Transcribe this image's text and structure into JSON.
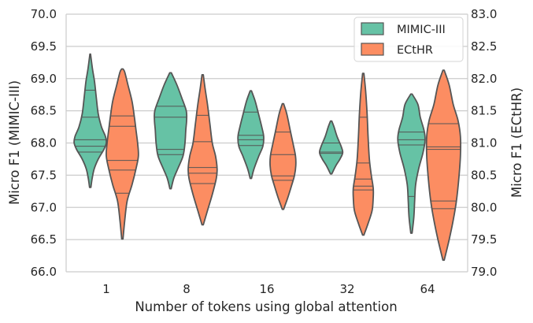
{
  "chart_data": {
    "type": "violin",
    "xlabel": "Number of tokens using global attention",
    "categories": [
      "1",
      "8",
      "16",
      "32",
      "64"
    ],
    "y_left": {
      "label": "Micro F1 (MIMIC-III)",
      "lim": [
        66.0,
        70.0
      ],
      "ticks": [
        "66.0",
        "66.5",
        "67.0",
        "67.5",
        "68.0",
        "68.5",
        "69.0",
        "69.5",
        "70.0"
      ]
    },
    "y_right": {
      "label": "Micro F1 (ECtHR)",
      "lim": [
        79.0,
        83.0
      ],
      "ticks": [
        "79.0",
        "79.5",
        "80.0",
        "80.5",
        "81.0",
        "81.5",
        "82.0",
        "82.5",
        "83.0"
      ]
    },
    "grid": true,
    "legend_position": "top-right",
    "legend": [
      {
        "name": "MIMIC-III",
        "color": "#66c2a5"
      },
      {
        "name": "ECtHR",
        "color": "#fc8d62"
      }
    ],
    "series": [
      {
        "name": "MIMIC-III",
        "axis": "left",
        "color": "#66c2a5",
        "violins": [
          {
            "category": "1",
            "profile": [
              [
                67.31,
                0.04
              ],
              [
                67.45,
                0.12
              ],
              [
                67.6,
                0.25
              ],
              [
                67.75,
                0.5
              ],
              [
                67.9,
                0.85
              ],
              [
                68.0,
                1.0
              ],
              [
                68.1,
                0.95
              ],
              [
                68.25,
                0.7
              ],
              [
                68.45,
                0.5
              ],
              [
                68.7,
                0.38
              ],
              [
                68.95,
                0.27
              ],
              [
                69.15,
                0.14
              ],
              [
                69.38,
                0.02
              ]
            ],
            "lines": [
              67.86,
              67.95,
              68.05,
              68.4,
              68.82
            ]
          },
          {
            "category": "8",
            "profile": [
              [
                67.29,
                0.04
              ],
              [
                67.45,
                0.2
              ],
              [
                67.6,
                0.45
              ],
              [
                67.8,
                0.78
              ],
              [
                68.0,
                0.9
              ],
              [
                68.2,
                0.95
              ],
              [
                68.35,
                1.0
              ],
              [
                68.5,
                0.98
              ],
              [
                68.7,
                0.7
              ],
              [
                68.9,
                0.4
              ],
              [
                69.09,
                0.05
              ]
            ],
            "lines": [
              67.82,
              67.9,
              68.4,
              68.57
            ]
          },
          {
            "category": "16",
            "profile": [
              [
                67.45,
                0.04
              ],
              [
                67.6,
                0.2
              ],
              [
                67.8,
                0.5
              ],
              [
                67.95,
                0.75
              ],
              [
                68.1,
                0.8
              ],
              [
                68.25,
                0.68
              ],
              [
                68.45,
                0.48
              ],
              [
                68.65,
                0.27
              ],
              [
                68.81,
                0.04
              ]
            ],
            "lines": [
              67.96,
              68.05,
              68.12,
              68.48
            ]
          },
          {
            "category": "32",
            "profile": [
              [
                67.52,
                0.04
              ],
              [
                67.65,
                0.3
              ],
              [
                67.75,
                0.55
              ],
              [
                67.85,
                0.72
              ],
              [
                67.95,
                0.62
              ],
              [
                68.1,
                0.37
              ],
              [
                68.25,
                0.18
              ],
              [
                68.34,
                0.04
              ]
            ],
            "lines": [
              67.84,
              67.86,
              68.0
            ]
          },
          {
            "category": "64",
            "profile": [
              [
                66.6,
                0.04
              ],
              [
                66.85,
                0.15
              ],
              [
                67.1,
                0.2
              ],
              [
                67.35,
                0.26
              ],
              [
                67.6,
                0.45
              ],
              [
                67.85,
                0.72
              ],
              [
                68.05,
                0.85
              ],
              [
                68.2,
                0.78
              ],
              [
                68.4,
                0.55
              ],
              [
                68.6,
                0.4
              ],
              [
                68.76,
                0.04
              ]
            ],
            "lines": [
              67.17,
              67.97,
              68.05,
              68.17
            ]
          }
        ]
      },
      {
        "name": "ECtHR",
        "axis": "right",
        "color": "#fc8d62",
        "violins": [
          {
            "category": "1",
            "profile": [
              [
                79.51,
                0.04
              ],
              [
                79.8,
                0.15
              ],
              [
                80.1,
                0.3
              ],
              [
                80.35,
                0.6
              ],
              [
                80.6,
                0.85
              ],
              [
                80.8,
                1.0
              ],
              [
                81.0,
                0.95
              ],
              [
                81.2,
                0.85
              ],
              [
                81.4,
                0.75
              ],
              [
                81.65,
                0.6
              ],
              [
                81.9,
                0.35
              ],
              [
                82.1,
                0.15
              ],
              [
                82.15,
                0.04
              ]
            ],
            "lines": [
              80.22,
              80.58,
              80.73,
              81.26,
              81.42
            ]
          },
          {
            "category": "8",
            "profile": [
              [
                79.73,
                0.04
              ],
              [
                79.95,
                0.3
              ],
              [
                80.2,
                0.6
              ],
              [
                80.45,
                0.85
              ],
              [
                80.6,
                0.9
              ],
              [
                80.8,
                0.8
              ],
              [
                81.0,
                0.6
              ],
              [
                81.3,
                0.45
              ],
              [
                81.6,
                0.3
              ],
              [
                81.85,
                0.15
              ],
              [
                82.06,
                0.04
              ]
            ],
            "lines": [
              80.37,
              80.53,
              80.62,
              81.02,
              81.43
            ]
          },
          {
            "category": "16",
            "profile": [
              [
                79.97,
                0.04
              ],
              [
                80.15,
                0.3
              ],
              [
                80.35,
                0.55
              ],
              [
                80.5,
                0.72
              ],
              [
                80.65,
                0.8
              ],
              [
                80.8,
                0.78
              ],
              [
                81.0,
                0.62
              ],
              [
                81.2,
                0.45
              ],
              [
                81.45,
                0.24
              ],
              [
                81.61,
                0.04
              ]
            ],
            "lines": [
              80.42,
              80.49,
              80.82,
              81.17
            ]
          },
          {
            "category": "32",
            "profile": [
              [
                79.57,
                0.04
              ],
              [
                79.75,
                0.3
              ],
              [
                79.95,
                0.55
              ],
              [
                80.15,
                0.62
              ],
              [
                80.3,
                0.62
              ],
              [
                80.5,
                0.5
              ],
              [
                80.75,
                0.38
              ],
              [
                81.1,
                0.3
              ],
              [
                81.45,
                0.24
              ],
              [
                81.8,
                0.15
              ],
              [
                82.08,
                0.04
              ]
            ],
            "lines": [
              80.27,
              80.33,
              80.44,
              80.69,
              81.4
            ]
          },
          {
            "category": "64",
            "profile": [
              [
                79.18,
                0.04
              ],
              [
                79.5,
                0.35
              ],
              [
                79.8,
                0.6
              ],
              [
                80.1,
                0.8
              ],
              [
                80.45,
                0.95
              ],
              [
                80.8,
                1.05
              ],
              [
                81.1,
                1.05
              ],
              [
                81.35,
                0.9
              ],
              [
                81.6,
                0.6
              ],
              [
                81.9,
                0.35
              ],
              [
                82.13,
                0.04
              ]
            ],
            "lines": [
              79.98,
              80.1,
              80.9,
              80.94,
              81.3
            ]
          }
        ]
      }
    ]
  }
}
